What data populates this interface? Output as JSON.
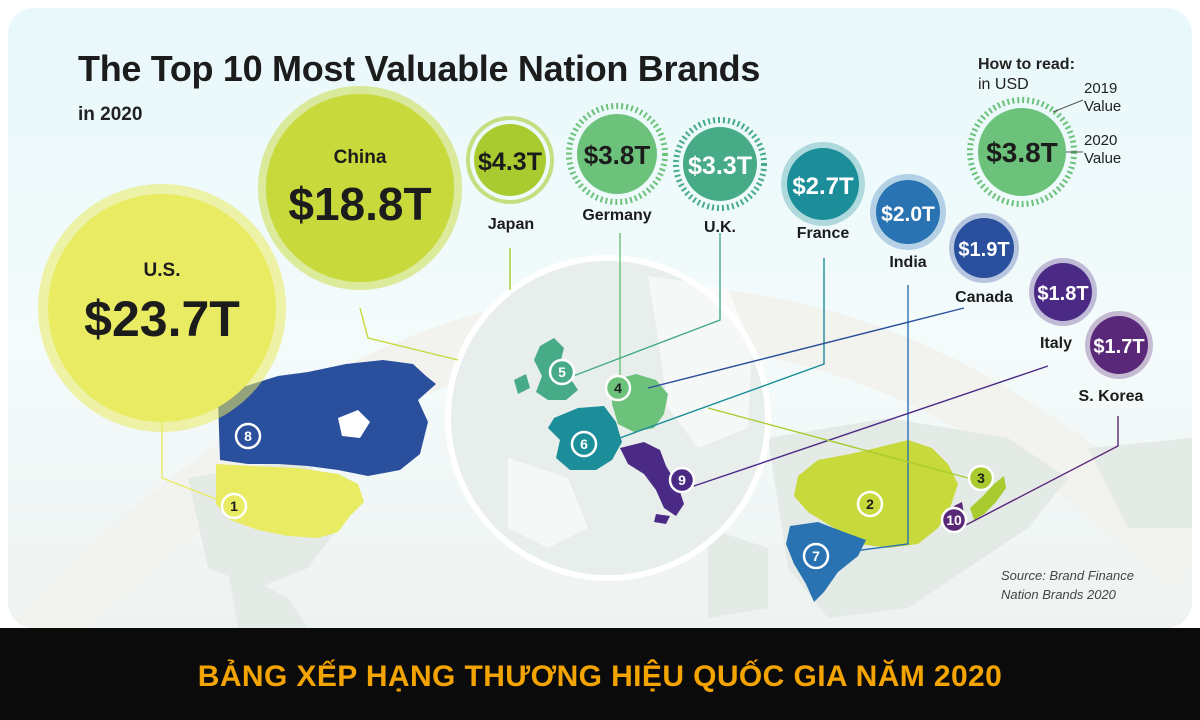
{
  "title": "The Top 10 Most Valuable Nation Brands",
  "subtitle": "in 2020",
  "legend": {
    "title": "How to read:",
    "unit": "in USD",
    "outer_label": "2019 Value",
    "inner_label": "2020 Value",
    "sample_value": "$3.8T"
  },
  "source": "Source: Brand Finance Nation Brands 2020",
  "banner": "BẢNG XẾP HẠNG THƯƠNG HIỆU QUỐC GIA NĂM 2020",
  "colors": {
    "us": "#e9eb63",
    "china": "#c7d93b",
    "japan": "#a9cb2f",
    "germany": "#6cc27a",
    "uk": "#46ab86",
    "france": "#1b8e99",
    "india": "#2a73b2",
    "canada": "#2a4f9c",
    "italy": "#4b2a86",
    "skorea": "#5a2878"
  },
  "brands": [
    {
      "rank": "1",
      "country": "U.S.",
      "value": "$23.7T",
      "color": "#e9eb63"
    },
    {
      "rank": "2",
      "country": "China",
      "value": "$18.8T",
      "color": "#c7d93b"
    },
    {
      "rank": "3",
      "country": "Japan",
      "value": "$4.3T",
      "color": "#a9cb2f"
    },
    {
      "rank": "4",
      "country": "Germany",
      "value": "$3.8T",
      "color": "#6cc27a"
    },
    {
      "rank": "5",
      "country": "U.K.",
      "value": "$3.3T",
      "color": "#46ab86"
    },
    {
      "rank": "6",
      "country": "France",
      "value": "$2.7T",
      "color": "#1b8e99"
    },
    {
      "rank": "7",
      "country": "India",
      "value": "$2.0T",
      "color": "#2a73b2"
    },
    {
      "rank": "8",
      "country": "Canada",
      "value": "$1.9T",
      "color": "#2a4f9c"
    },
    {
      "rank": "9",
      "country": "Italy",
      "value": "$1.8T",
      "color": "#4b2a86"
    },
    {
      "rank": "10",
      "country": "S. Korea",
      "value": "$1.7T",
      "color": "#5a2878"
    }
  ]
}
